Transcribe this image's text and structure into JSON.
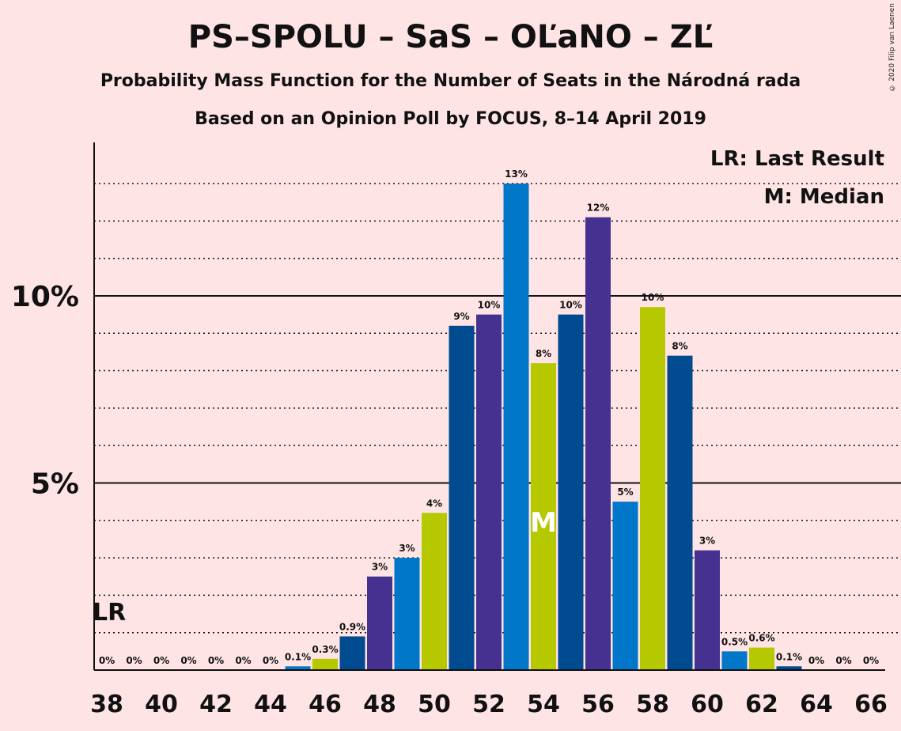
{
  "title": "PS–SPOLU – SaS – OĽaNO – ZĽ",
  "subtitle": "Probability Mass Function for the Number of Seats in the Národná rada",
  "subtitle2": "Based on an Opinion Poll by FOCUS, 8–14 April 2019",
  "copyright": "© 2020 Filip van Laenen",
  "legend": {
    "lr": "LR: Last Result",
    "median": "M: Median"
  },
  "markers": {
    "lr_label": "LR",
    "lr_seat": 38,
    "median_label": "M",
    "median_seat": 54
  },
  "colors": [
    "#0077c8",
    "#45318f",
    "#0077c8",
    "#b5c800",
    "#004a8f",
    "#45318f",
    "#0077c8"
  ],
  "chart_data": {
    "type": "bar",
    "x": [
      38,
      39,
      40,
      41,
      42,
      43,
      44,
      45,
      46,
      47,
      48,
      49,
      50,
      51,
      52,
      53,
      54,
      55,
      56,
      57,
      58,
      59,
      60,
      61,
      62,
      63,
      64,
      65,
      66
    ],
    "values": [
      0,
      0,
      0,
      0,
      0,
      0,
      0,
      0.1,
      0.3,
      0.9,
      2.5,
      3.0,
      4.2,
      9.2,
      9.5,
      13.0,
      8.2,
      9.5,
      12.1,
      4.5,
      9.7,
      8.4,
      3.2,
      0.5,
      0.6,
      0.1,
      0,
      0,
      0
    ],
    "labels": [
      "0%",
      "0%",
      "0%",
      "0%",
      "0%",
      "0%",
      "0%",
      "0.1%",
      "0.3%",
      "0.9%",
      "3%",
      "3%",
      "4%",
      "9%",
      "10%",
      "13%",
      "8%",
      "10%",
      "12%",
      "5%",
      "10%",
      "8%",
      "3%",
      "0.5%",
      "0.6%",
      "0.1%",
      "0%",
      "0%",
      "0%"
    ],
    "bar_colors": [
      "#0077c8",
      "#45318f",
      "#0077c8",
      "#b5c800",
      "#004a8f",
      "#45318f",
      "#0077c8",
      "#0077c8",
      "#b5c800",
      "#004a8f",
      "#45318f",
      "#0077c8",
      "#b5c800",
      "#004a8f",
      "#45318f",
      "#0077c8",
      "#b5c800",
      "#004a8f",
      "#45318f",
      "#0077c8",
      "#b5c800",
      "#004a8f",
      "#45318f",
      "#0077c8",
      "#b5c800",
      "#004a8f",
      "#45318f",
      "#0077c8",
      "#b5c800"
    ],
    "x_ticks": [
      38,
      40,
      42,
      44,
      46,
      48,
      50,
      52,
      54,
      56,
      58,
      60,
      62,
      64,
      66
    ],
    "y_ticks": [
      {
        "value": 5,
        "label": "5%"
      },
      {
        "value": 10,
        "label": "10%"
      }
    ],
    "ylim": [
      0,
      14.1
    ],
    "grid": "dotted every 1%"
  }
}
